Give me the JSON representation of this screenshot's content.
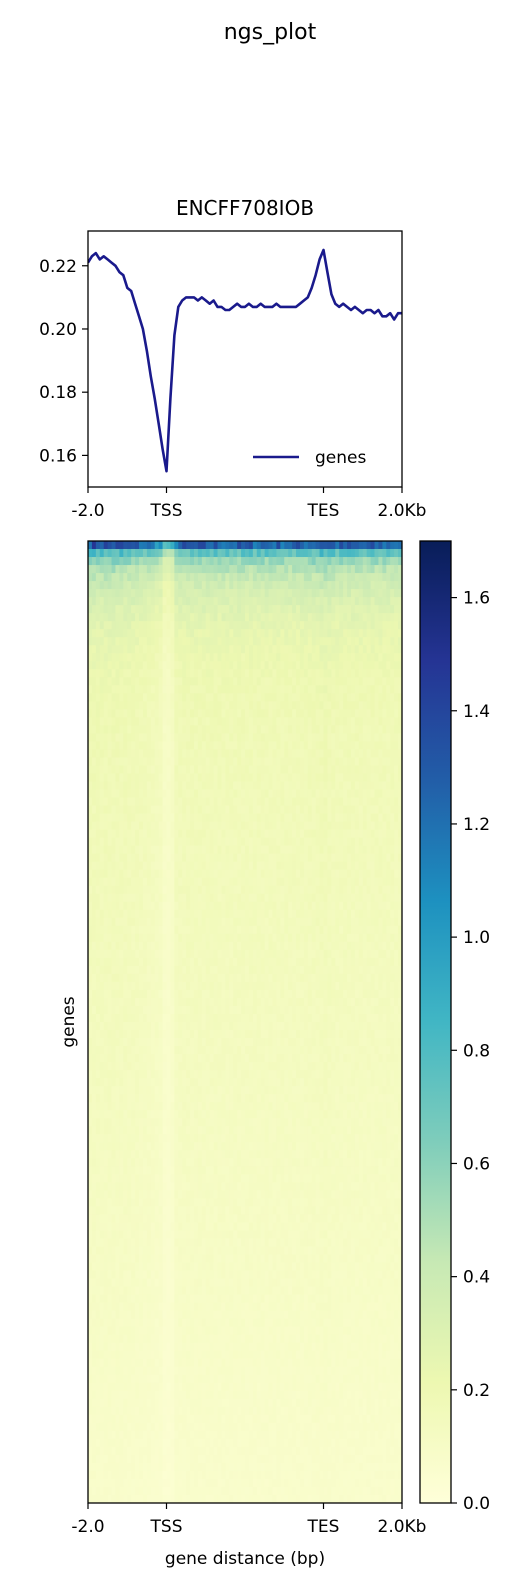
{
  "figure_title": "ngs_plot",
  "colors": {
    "line": "#1a1a8c",
    "colormap": [
      "#ffffd9",
      "#edf8b1",
      "#c7e9b4",
      "#7fcdbb",
      "#41b6c4",
      "#1d91c0",
      "#225ea8",
      "#253494",
      "#081d58"
    ]
  },
  "chart_data": [
    {
      "type": "line",
      "title": "ENCFF708IOB",
      "xlabel": "",
      "ylabel": "",
      "x_ticks": [
        "-2.0",
        "TSS",
        "TES",
        "2.0Kb"
      ],
      "x_tick_positions_bins": [
        0,
        20,
        60,
        80
      ],
      "xlim": [
        0,
        80
      ],
      "ylim": [
        0.15,
        0.231
      ],
      "y_ticks": [
        "0.16",
        "0.18",
        "0.20",
        "0.22"
      ],
      "y_tick_values": [
        0.16,
        0.18,
        0.2,
        0.22
      ],
      "legend": "lower-right",
      "series": [
        {
          "name": "genes",
          "x": [
            0,
            1,
            2,
            3,
            4,
            5,
            6,
            7,
            8,
            9,
            10,
            11,
            12,
            13,
            14,
            15,
            16,
            17,
            18,
            19,
            20,
            21,
            22,
            23,
            24,
            25,
            26,
            27,
            28,
            29,
            30,
            31,
            32,
            33,
            34,
            35,
            36,
            37,
            38,
            39,
            40,
            41,
            42,
            43,
            44,
            45,
            46,
            47,
            48,
            49,
            50,
            51,
            52,
            53,
            54,
            55,
            56,
            57,
            58,
            59,
            60,
            61,
            62,
            63,
            64,
            65,
            66,
            67,
            68,
            69,
            70,
            71,
            72,
            73,
            74,
            75,
            76,
            77,
            78,
            79,
            80
          ],
          "values": [
            0.221,
            0.223,
            0.224,
            0.222,
            0.223,
            0.222,
            0.221,
            0.22,
            0.218,
            0.217,
            0.213,
            0.212,
            0.208,
            0.204,
            0.2,
            0.193,
            0.185,
            0.178,
            0.17,
            0.162,
            0.155,
            0.178,
            0.198,
            0.207,
            0.209,
            0.21,
            0.21,
            0.21,
            0.209,
            0.21,
            0.209,
            0.208,
            0.209,
            0.207,
            0.207,
            0.206,
            0.206,
            0.207,
            0.208,
            0.207,
            0.207,
            0.208,
            0.207,
            0.207,
            0.208,
            0.207,
            0.207,
            0.207,
            0.208,
            0.207,
            0.207,
            0.207,
            0.207,
            0.207,
            0.208,
            0.209,
            0.21,
            0.213,
            0.217,
            0.222,
            0.225,
            0.218,
            0.211,
            0.208,
            0.207,
            0.208,
            0.207,
            0.206,
            0.207,
            0.206,
            0.205,
            0.206,
            0.206,
            0.205,
            0.206,
            0.204,
            0.204,
            0.205,
            0.203,
            0.205,
            0.205
          ]
        }
      ]
    },
    {
      "type": "heatmap",
      "title": "",
      "xlabel": "gene distance (bp)",
      "ylabel": "genes",
      "x_ticks": [
        "-2.0",
        "TSS",
        "TES",
        "2.0Kb"
      ],
      "x_tick_positions_bins": [
        0,
        20,
        60,
        80
      ],
      "colorbar": {
        "vmin": 0.0,
        "vmax": 1.7,
        "ticks": [
          "0.0",
          "0.2",
          "0.4",
          "0.6",
          "0.8",
          "1.0",
          "1.2",
          "1.4",
          "1.6"
        ],
        "tick_values": [
          0,
          0.2,
          0.4,
          0.6,
          0.8,
          1.0,
          1.2,
          1.4,
          1.6
        ]
      },
      "rows_sorted": "descending mean signal"
    }
  ]
}
